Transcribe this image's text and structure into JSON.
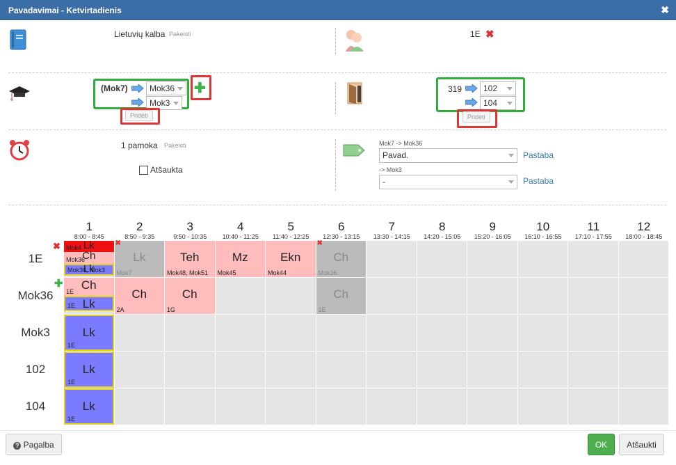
{
  "window": {
    "title": "Pavadavimai - Ketvirtadienis",
    "close": "✖"
  },
  "subject": {
    "name": "Lietuvių kalba",
    "change": "Pakeisti"
  },
  "group": {
    "name": "1E"
  },
  "teachers": {
    "from": "(Mok7)",
    "to1": "Mok36",
    "to2": "Mok3",
    "add": "Pridėti"
  },
  "rooms": {
    "from": "319",
    "to1": "102",
    "to2": "104",
    "add": "Pridėti"
  },
  "time": {
    "lesson": "1 pamoka",
    "change": "Pakeisti",
    "cancelled_label": "Atšaukta"
  },
  "notes": {
    "label1": "Mok7 -> Mok36",
    "value1": "Pavad.",
    "link1": "Pastaba",
    "label2": "-> Mok3",
    "value2": "-",
    "link2": "Pastaba"
  },
  "schedule": {
    "periods": [
      {
        "n": "1",
        "t": "8:00 - 8:45"
      },
      {
        "n": "2",
        "t": "8:50 - 9:35"
      },
      {
        "n": "3",
        "t": "9:50 - 10:35"
      },
      {
        "n": "4",
        "t": "10:40 - 11:25"
      },
      {
        "n": "5",
        "t": "11:40 - 12:25"
      },
      {
        "n": "6",
        "t": "12:30 - 13:15"
      },
      {
        "n": "7",
        "t": "13:30 - 14:15"
      },
      {
        "n": "8",
        "t": "14:20 - 15:05"
      },
      {
        "n": "9",
        "t": "15:20 - 16:05"
      },
      {
        "n": "10",
        "t": "16:10 - 16:55"
      },
      {
        "n": "11",
        "t": "17:10 - 17:55"
      },
      {
        "n": "12",
        "t": "18:00 - 18:45"
      }
    ],
    "rows": [
      "1E",
      "Mok36",
      "Mok3",
      "102",
      "104"
    ],
    "lessons": {
      "r0p1a": "Lk",
      "r0p1a_sub": "Mok4",
      "r0p1b": "Ch",
      "r0p1b_sub": "Mok36",
      "r0p1c": "Lk",
      "r0p1c_sub": "Mok36, Mok3",
      "r0p2": "Lk",
      "r0p2_sub": "Mok7",
      "r0p3": "Teh",
      "r0p3_sub": "Mok48, Mok51",
      "r0p4": "Mz",
      "r0p4_sub": "Mok45",
      "r0p5": "Ekn",
      "r0p5_sub": "Mok44",
      "r0p6": "Ch",
      "r0p6_sub": "Mok36",
      "r1p1a": "Ch",
      "r1p1a_sub": "1E",
      "r1p1b": "Lk",
      "r1p1b_sub": "1E",
      "r1p2": "Ch",
      "r1p2_sub": "2A",
      "r1p3": "Ch",
      "r1p3_sub": "1G",
      "r1p6": "Ch",
      "r1p6_sub": "1E",
      "r2p1": "Lk",
      "r2p1_sub": "1E",
      "r3p1": "Lk",
      "r3p1_sub": "1E",
      "r4p1": "Lk",
      "r4p1_sub": "1E"
    }
  },
  "footer": {
    "help": "Pagalba",
    "ok": "OK",
    "cancel": "Atšaukti"
  },
  "colors": {
    "title_bg": "#3b6da6",
    "pink": "#ffbcbc",
    "grey": "#bbbbbb",
    "blue": "#7b7bff",
    "red": "#ee1111",
    "ok_green": "#4cae4c"
  }
}
